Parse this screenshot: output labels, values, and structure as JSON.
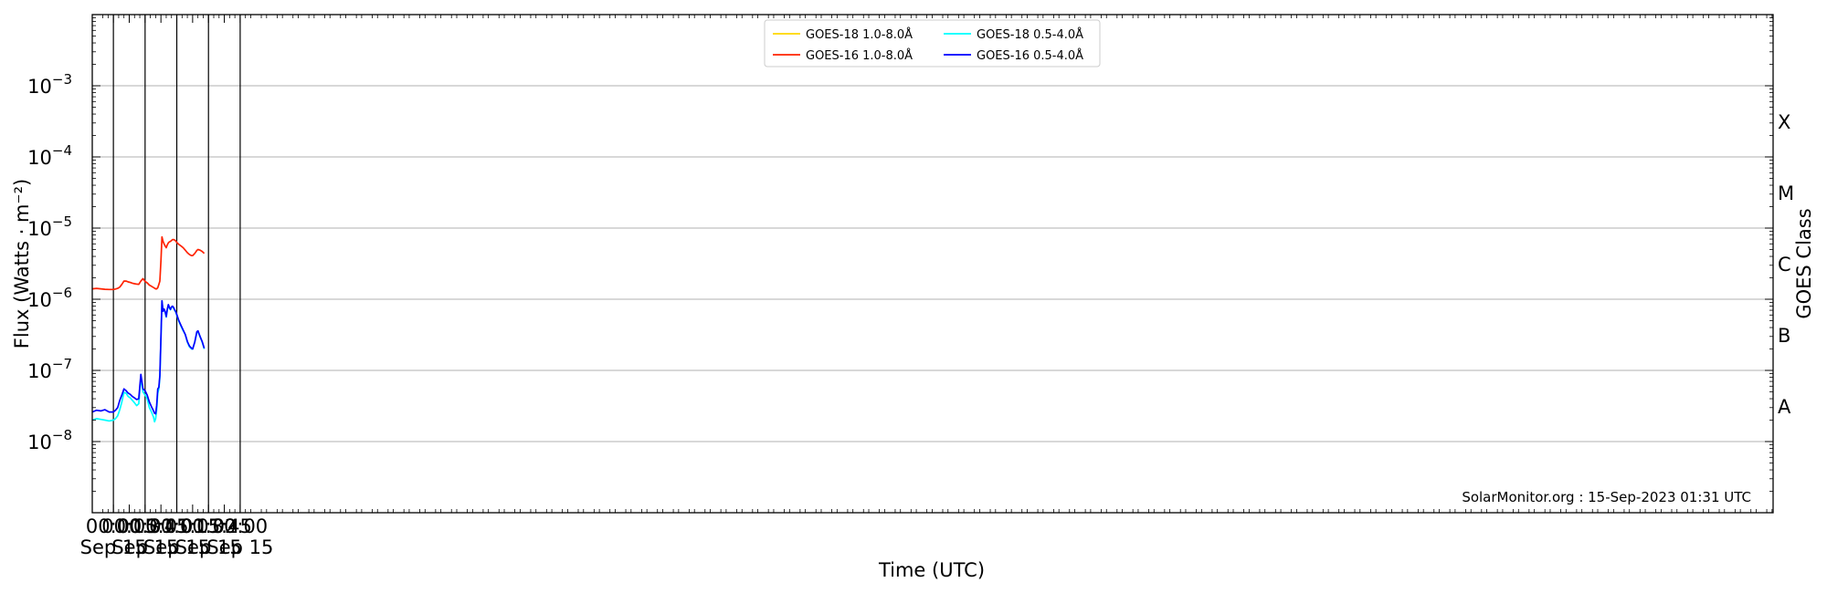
{
  "chart_data": {
    "type": "line",
    "xlabel": "Time (UTC)",
    "ylabel": "Flux (Watts · m⁻²)",
    "y2label": "GOES Class",
    "yscale": "log",
    "ylim": [
      1e-09,
      0.01
    ],
    "xlim": [
      "2023-09-14 23:40",
      "2023-09-15 02:11"
    ],
    "grid": "horizontal-at-decades",
    "legend_position": "top-center",
    "x_ticks": [
      {
        "time": "00:00",
        "date": "Sep 15"
      },
      {
        "time": "00:15",
        "date": ""
      },
      {
        "time": "00:30",
        "date": "Sep 15"
      },
      {
        "time": "00:45",
        "date": ""
      },
      {
        "time": "01:00",
        "date": "Sep 15"
      },
      {
        "time": "01:15",
        "date": ""
      },
      {
        "time": "01:30",
        "date": "Sep 15"
      },
      {
        "time": "01:45",
        "date": ""
      },
      {
        "time": "02:00",
        "date": "Sep 15"
      }
    ],
    "y_ticks": [
      {
        "value": 1e-08,
        "base": "10",
        "exp": "−8"
      },
      {
        "value": 1e-07,
        "base": "10",
        "exp": "−7"
      },
      {
        "value": 1e-06,
        "base": "10",
        "exp": "−6"
      },
      {
        "value": 1e-05,
        "base": "10",
        "exp": "−5"
      },
      {
        "value": 0.0001,
        "base": "10",
        "exp": "−4"
      },
      {
        "value": 0.001,
        "base": "10",
        "exp": "−3"
      }
    ],
    "goes_classes": [
      {
        "label": "A",
        "value": 3.16e-08
      },
      {
        "label": "B",
        "value": 3.16e-07
      },
      {
        "label": "C",
        "value": 3.16e-06
      },
      {
        "label": "M",
        "value": 3.16e-05
      },
      {
        "label": "X",
        "value": 0.000316
      }
    ],
    "day_lines": [
      "00:00",
      "00:30",
      "01:00",
      "01:30",
      "02:00"
    ],
    "credit": "SolarMonitor.org : 15-Sep-2023 01:31 UTC",
    "series": [
      {
        "name": "GOES-18 1.0-8.0Å",
        "color": "#ffd700",
        "x": [],
        "values": []
      },
      {
        "name": "GOES-16 1.0-8.0Å",
        "color": "#ff2200",
        "x": [
          "23:40",
          "23:44",
          "23:48",
          "23:52",
          "23:56",
          "00:00",
          "00:02",
          "00:04",
          "00:06",
          "00:08",
          "00:10",
          "00:12",
          "00:14",
          "00:16",
          "00:18",
          "00:20",
          "00:22",
          "00:24",
          "00:26",
          "00:28",
          "00:30",
          "00:32",
          "00:34",
          "00:36",
          "00:38",
          "00:40",
          "00:41",
          "00:42",
          "00:43",
          "00:44",
          "00:45",
          "00:46",
          "00:47",
          "00:48",
          "00:49",
          "00:50",
          "00:51",
          "00:52",
          "00:53",
          "00:54",
          "00:55",
          "00:56",
          "00:57",
          "00:58",
          "00:59",
          "01:00",
          "01:02",
          "01:04",
          "01:06",
          "01:08",
          "01:10",
          "01:12",
          "01:14",
          "01:15",
          "01:17",
          "01:19",
          "01:20",
          "01:22",
          "01:24",
          "01:26"
        ],
        "values": [
          1.4e-06,
          1.42e-06,
          1.4e-06,
          1.38e-06,
          1.37e-06,
          1.37e-06,
          1.39e-06,
          1.42e-06,
          1.48e-06,
          1.62e-06,
          1.8e-06,
          1.8e-06,
          1.75e-06,
          1.72e-06,
          1.68e-06,
          1.65e-06,
          1.63e-06,
          1.62e-06,
          1.8e-06,
          1.95e-06,
          1.78e-06,
          1.7e-06,
          1.58e-06,
          1.52e-06,
          1.46e-06,
          1.4e-06,
          1.4e-06,
          1.45e-06,
          1.62e-06,
          1.8e-06,
          3.5e-06,
          7.5e-06,
          6.5e-06,
          6e-06,
          5.6e-06,
          5.3e-06,
          5.8e-06,
          6.2e-06,
          6.4e-06,
          6.5e-06,
          6.7e-06,
          6.9e-06,
          6.9e-06,
          6.8e-06,
          6.6e-06,
          6.3e-06,
          5.9e-06,
          5.6e-06,
          5.3e-06,
          4.9e-06,
          4.5e-06,
          4.25e-06,
          4.1e-06,
          4.1e-06,
          4.4e-06,
          4.85e-06,
          5e-06,
          4.9e-06,
          4.7e-06,
          4.4e-06
        ]
      },
      {
        "name": "GOES-18 0.5-4.0Å",
        "color": "#00ffff",
        "x": [
          "23:40",
          "23:44",
          "23:48",
          "23:52",
          "23:56",
          "00:00",
          "00:02",
          "00:04",
          "00:06",
          "00:08",
          "00:10",
          "00:12",
          "00:14",
          "00:16",
          "00:18",
          "00:20",
          "00:22",
          "00:24",
          "00:26",
          "00:28",
          "00:30",
          "00:32",
          "00:34",
          "00:36",
          "00:38",
          "00:39",
          "00:40",
          "00:41",
          "00:42",
          "00:43",
          "00:44",
          "00:45",
          "00:46",
          "00:47",
          "00:48",
          "00:49",
          "00:50",
          "00:51",
          "00:52",
          "00:53",
          "00:54",
          "00:55",
          "00:56",
          "00:57",
          "00:58",
          "00:59",
          "01:00",
          "01:02",
          "01:04",
          "01:06",
          "01:08",
          "01:10",
          "01:12",
          "01:14",
          "01:15",
          "01:17",
          "01:19",
          "01:20",
          "01:22",
          "01:24",
          "01:26"
        ],
        "values": [
          2e-08,
          2.1e-08,
          2.05e-08,
          2e-08,
          1.95e-08,
          2e-08,
          2.1e-08,
          2.3e-08,
          2.8e-08,
          3.6e-08,
          4.9e-08,
          4.8e-08,
          4.3e-08,
          4.1e-08,
          3.8e-08,
          3.5e-08,
          3.2e-08,
          3.4e-08,
          8e-08,
          5e-08,
          4.5e-08,
          4e-08,
          3e-08,
          2.6e-08,
          2.2e-08,
          1.9e-08,
          2.1e-08,
          2.8e-08,
          4.8e-08,
          5.5e-08,
          8e-08,
          2.8e-07,
          9.5e-07,
          6.8e-07,
          7.2e-07,
          6.6e-07,
          5.6e-07,
          7e-07,
          8.3e-07,
          7.6e-07,
          7.1e-07,
          7.7e-07,
          7.9e-07,
          7.5e-07,
          7e-07,
          6.6e-07,
          6e-07,
          4.9e-07,
          4.2e-07,
          3.6e-07,
          3.2e-07,
          2.5e-07,
          2.15e-07,
          2e-07,
          2e-07,
          2.5e-07,
          3.4e-07,
          3.5e-07,
          3e-07,
          2.5e-07,
          2e-07
        ]
      },
      {
        "name": "GOES-16 0.5-4.0Å",
        "color": "#0000ff",
        "x": [
          "23:40",
          "23:44",
          "23:48",
          "23:52",
          "23:56",
          "00:00",
          "00:02",
          "00:04",
          "00:06",
          "00:08",
          "00:10",
          "00:12",
          "00:14",
          "00:16",
          "00:18",
          "00:20",
          "00:22",
          "00:24",
          "00:26",
          "00:28",
          "00:30",
          "00:32",
          "00:34",
          "00:36",
          "00:38",
          "00:39",
          "00:40",
          "00:41",
          "00:42",
          "00:43",
          "00:44",
          "00:45",
          "00:46",
          "00:47",
          "00:48",
          "00:49",
          "00:50",
          "00:51",
          "00:52",
          "00:53",
          "00:54",
          "00:55",
          "00:56",
          "00:57",
          "00:58",
          "00:59",
          "01:00",
          "01:02",
          "01:04",
          "01:06",
          "01:08",
          "01:10",
          "01:12",
          "01:14",
          "01:15",
          "01:17",
          "01:19",
          "01:20",
          "01:22",
          "01:24",
          "01:26"
        ],
        "values": [
          2.6e-08,
          2.75e-08,
          2.7e-08,
          2.8e-08,
          2.6e-08,
          2.6e-08,
          2.75e-08,
          3e-08,
          3.8e-08,
          4.5e-08,
          5.5e-08,
          5.2e-08,
          4.8e-08,
          4.6e-08,
          4.3e-08,
          4.1e-08,
          3.9e-08,
          4e-08,
          8.8e-08,
          5.5e-08,
          5.2e-08,
          4.5e-08,
          3.6e-08,
          3.1e-08,
          2.7e-08,
          2.5e-08,
          2.45e-08,
          3.2e-08,
          5.5e-08,
          5.8e-08,
          8.5e-08,
          3e-07,
          9.5e-07,
          6.8e-07,
          7.3e-07,
          6.7e-07,
          5.7e-07,
          7.2e-07,
          8.4e-07,
          7.7e-07,
          7.2e-07,
          7.8e-07,
          8e-07,
          7.6e-07,
          7.1e-07,
          6.7e-07,
          6.1e-07,
          5e-07,
          4.3e-07,
          3.7e-07,
          3.2e-07,
          2.55e-07,
          2.2e-07,
          2.05e-07,
          2e-07,
          2.5e-07,
          3.5e-07,
          3.6e-07,
          3e-07,
          2.55e-07,
          2.05e-07
        ]
      }
    ]
  }
}
